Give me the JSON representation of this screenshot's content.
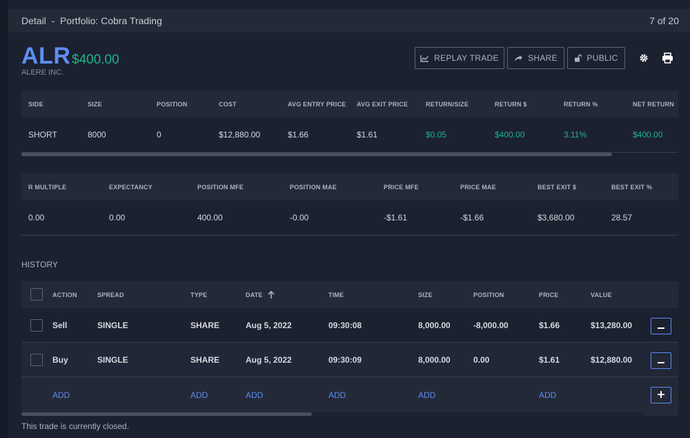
{
  "header": {
    "title": "Detail  -  Portfolio: Cobra Trading",
    "counter": "7 of 20"
  },
  "trade": {
    "ticker": "ALR",
    "price": "$400.00",
    "company": "ALERE INC."
  },
  "toolbar": {
    "replay_label": "REPLAY TRADE",
    "share_label": "SHARE",
    "public_label": "PUBLIC"
  },
  "summary1": {
    "headers": [
      "SIDE",
      "SIZE",
      "POSITION",
      "COST",
      "AVG ENTRY PRICE",
      "AVG EXIT PRICE",
      "RETURN/SIZE",
      "RETURN $",
      "RETURN %",
      "NET RETURN"
    ],
    "values": [
      "SHORT",
      "8000",
      "0",
      "$12,880.00",
      "$1.66",
      "$1.61",
      "$0.05",
      "$400.00",
      "3.11%",
      "$400.00"
    ]
  },
  "summary2": {
    "headers": [
      "R MULTIPLE",
      "EXPECTANCY",
      "POSITION MFE",
      "POSITION MAE",
      "PRICE MFE",
      "PRICE MAE",
      "BEST EXIT $",
      "BEST EXIT %"
    ],
    "values": [
      "0.00",
      "0.00",
      "400.00",
      "-0.00",
      "-$1.61",
      "-$1.66",
      "$3,680.00",
      "28.57"
    ]
  },
  "history": {
    "label": "HISTORY",
    "headers": [
      "ACTION",
      "SPREAD",
      "TYPE",
      "DATE",
      "TIME",
      "SIZE",
      "POSITION",
      "PRICE",
      "VALUE"
    ],
    "rows": [
      [
        "Sell",
        "SINGLE",
        "SHARE",
        "Aug 5, 2022",
        "09:30:08",
        "8,000.00",
        "-8,000.00",
        "$1.66",
        "$13,280.00"
      ],
      [
        "Buy",
        "SINGLE",
        "SHARE",
        "Aug 5, 2022",
        "09:30:09",
        "8,000.00",
        "0.00",
        "$1.61",
        "$12,880.00"
      ]
    ],
    "add_label": "ADD"
  },
  "status": {
    "closed_text": "This trade is currently closed."
  },
  "colors": {
    "accent": "#5c8df3",
    "positive": "#1fb48c"
  }
}
